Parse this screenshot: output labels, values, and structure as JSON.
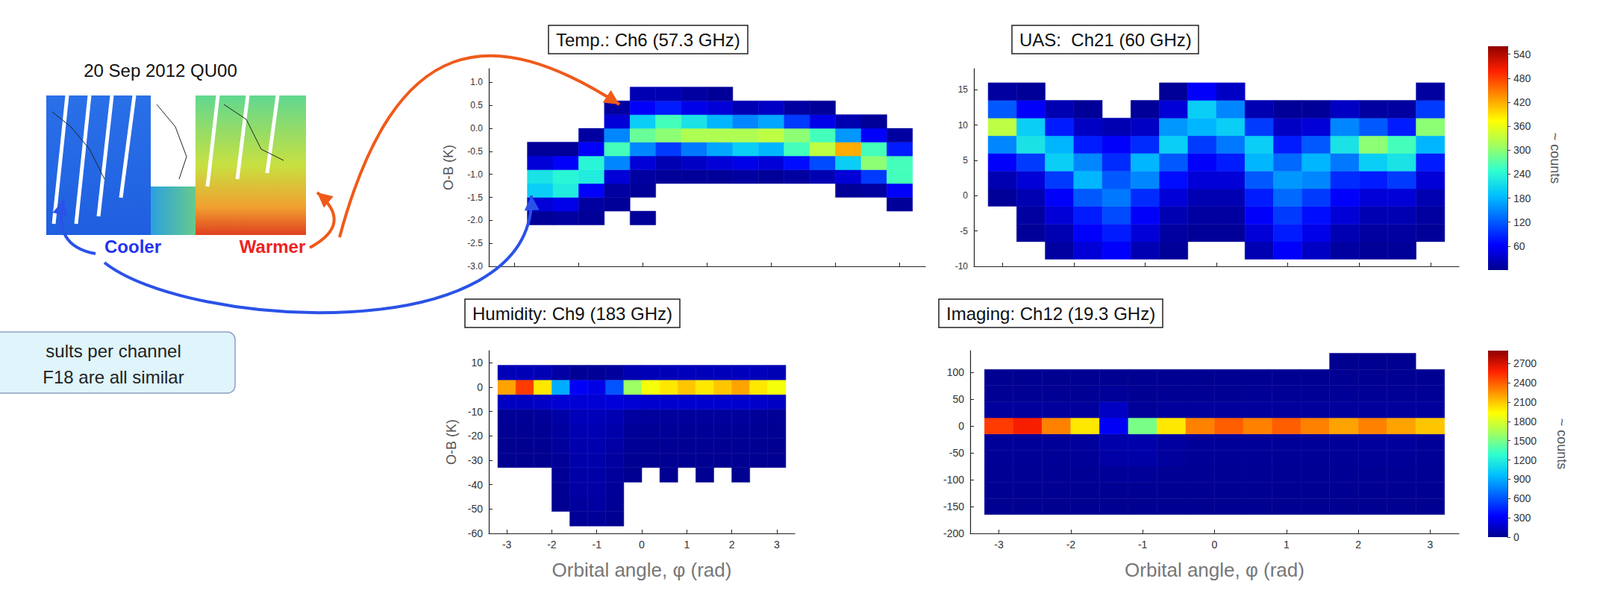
{
  "inset": {
    "title": "20 Sep 2012 QU00",
    "labels": [
      "Cooler",
      "Warmer"
    ]
  },
  "note": {
    "lines": [
      "sults per channel",
      "F18 are all similar"
    ]
  },
  "colorbars": [
    {
      "label": "~ counts",
      "range": [
        0,
        560
      ],
      "ticks": [
        60,
        120,
        180,
        240,
        300,
        360,
        420,
        480,
        540
      ]
    },
    {
      "label": "~ counts",
      "range": [
        0,
        2900
      ],
      "ticks": [
        0,
        300,
        600,
        900,
        1200,
        1500,
        1800,
        2100,
        2400,
        2700
      ]
    }
  ],
  "chart_data": [
    {
      "type": "heatmap",
      "title": "Temp.: Ch6 (57.3 GHz)",
      "ylabel": "O-B (K)",
      "xlim": [
        -3.4,
        3.4
      ],
      "xticks": [
        -3,
        -2,
        -1,
        0,
        1,
        2,
        3
      ],
      "ylim": [
        -3,
        1.3
      ],
      "yticks": [
        {
          "value": -3,
          "label": "-3.0"
        },
        -2.5,
        {
          "value": -2,
          "label": "-2.0"
        },
        -1.5,
        {
          "value": -1,
          "label": "-1.0"
        },
        -0.5,
        {
          "value": 0,
          "label": "0.0"
        },
        0.5,
        {
          "value": 1,
          "label": "1.0"
        }
      ],
      "tick_labels": "y",
      "x_bins": [
        -3.2,
        -2.8,
        -2.4,
        -2,
        -1.6,
        -1.2,
        -0.8,
        -0.4,
        0,
        0.4,
        0.8,
        1.2,
        1.6,
        2,
        2.4,
        2.8,
        3.2
      ],
      "y_bins": [
        -2.1,
        -1.8,
        -1.5,
        -1.2,
        -0.9,
        -0.6,
        -0.3,
        0,
        0.3,
        0.6,
        0.9
      ],
      "counts": [
        [
          0,
          5,
          10,
          5,
          0,
          5,
          0,
          0,
          0,
          0,
          0,
          0,
          0,
          0,
          0,
          0
        ],
        [
          0,
          40,
          50,
          10,
          5,
          0,
          0,
          0,
          0,
          0,
          0,
          0,
          0,
          0,
          0,
          5
        ],
        [
          0,
          200,
          230,
          60,
          10,
          5,
          0,
          0,
          0,
          0,
          0,
          0,
          0,
          5,
          10,
          60
        ],
        [
          0,
          220,
          240,
          230,
          40,
          10,
          5,
          5,
          5,
          10,
          5,
          10,
          20,
          40,
          100,
          260
        ],
        [
          0,
          40,
          60,
          240,
          150,
          40,
          20,
          30,
          40,
          50,
          40,
          70,
          110,
          200,
          300,
          260
        ],
        [
          0,
          5,
          5,
          60,
          260,
          150,
          100,
          140,
          170,
          200,
          180,
          260,
          330,
          420,
          260,
          80
        ],
        [
          0,
          0,
          0,
          10,
          150,
          280,
          300,
          320,
          320,
          320,
          330,
          300,
          260,
          160,
          60,
          10
        ],
        [
          0,
          0,
          0,
          0,
          40,
          200,
          260,
          220,
          180,
          150,
          170,
          100,
          50,
          20,
          5,
          0
        ],
        [
          0,
          0,
          0,
          0,
          10,
          60,
          80,
          50,
          40,
          20,
          30,
          10,
          5,
          0,
          0,
          0
        ],
        [
          0,
          0,
          0,
          0,
          0,
          20,
          20,
          10,
          5,
          0,
          0,
          0,
          0,
          0,
          0,
          0
        ]
      ]
    },
    {
      "type": "heatmap",
      "title": "UAS:  Ch21 (60 GHz)",
      "xlim": [
        -3.4,
        3.4
      ],
      "xticks": [
        -3,
        -2,
        -1,
        0,
        1,
        2,
        3
      ],
      "ylim": [
        -10,
        18
      ],
      "yticks": [
        -10,
        -5,
        0,
        5,
        10,
        15
      ],
      "tick_labels": "y",
      "x_bins": [
        -3.2,
        -2.8,
        -2.4,
        -2,
        -1.6,
        -1.2,
        -0.8,
        -0.4,
        0,
        0.4,
        0.8,
        1.2,
        1.6,
        2,
        2.4,
        2.8,
        3.2
      ],
      "y_bins": [
        -9,
        -6.5,
        -4,
        -1.5,
        1,
        3.5,
        6,
        8.5,
        11,
        13.5,
        16
      ],
      "counts": [
        [
          0,
          0,
          10,
          40,
          60,
          20,
          5,
          0,
          0,
          20,
          60,
          30,
          10,
          5,
          5,
          0
        ],
        [
          0,
          5,
          20,
          60,
          80,
          40,
          10,
          5,
          5,
          40,
          80,
          50,
          20,
          10,
          10,
          5
        ],
        [
          0,
          10,
          40,
          80,
          110,
          60,
          20,
          10,
          10,
          60,
          100,
          70,
          40,
          20,
          20,
          10
        ],
        [
          5,
          20,
          60,
          120,
          140,
          90,
          40,
          20,
          20,
          80,
          130,
          100,
          60,
          40,
          40,
          20
        ],
        [
          20,
          40,
          100,
          180,
          120,
          150,
          70,
          40,
          40,
          120,
          160,
          150,
          90,
          80,
          100,
          40
        ],
        [
          60,
          100,
          200,
          150,
          90,
          180,
          120,
          60,
          80,
          180,
          130,
          180,
          140,
          200,
          220,
          80
        ],
        [
          150,
          220,
          180,
          80,
          60,
          90,
          200,
          100,
          140,
          200,
          80,
          120,
          220,
          300,
          260,
          180
        ],
        [
          330,
          200,
          80,
          30,
          20,
          30,
          160,
          180,
          200,
          100,
          30,
          40,
          150,
          120,
          80,
          300
        ],
        [
          120,
          60,
          20,
          5,
          0,
          5,
          40,
          200,
          150,
          20,
          5,
          5,
          30,
          10,
          10,
          100
        ],
        [
          10,
          5,
          0,
          0,
          0,
          0,
          5,
          60,
          30,
          0,
          0,
          0,
          0,
          0,
          0,
          10
        ]
      ]
    },
    {
      "type": "heatmap",
      "title": "Humidity: Ch9 (183 GHz)",
      "xlabel": "Orbital angle, φ (rad)",
      "ylabel": "O-B (K)",
      "xlim": [
        -3.4,
        3.4
      ],
      "xticks": [
        -3,
        -2,
        -1,
        0,
        1,
        2,
        3
      ],
      "ylim": [
        -60,
        15
      ],
      "yticks": [
        -60,
        -50,
        -40,
        -30,
        -20,
        -10,
        0,
        10
      ],
      "x_bins": [
        -3.2,
        -2.8,
        -2.4,
        -2,
        -1.6,
        -1.2,
        -0.8,
        -0.4,
        0,
        0.4,
        0.8,
        1.2,
        1.6,
        2,
        2.4,
        2.8,
        3.2
      ],
      "y_bins": [
        -57,
        -51,
        -45,
        -39,
        -33,
        -27,
        -21,
        -15,
        -9,
        -3,
        3,
        9
      ],
      "counts": [
        [
          0,
          0,
          0,
          0,
          20,
          30,
          5,
          0,
          0,
          0,
          0,
          0,
          0,
          0,
          0,
          0
        ],
        [
          0,
          0,
          0,
          5,
          40,
          50,
          20,
          0,
          0,
          0,
          0,
          0,
          0,
          0,
          0,
          0
        ],
        [
          0,
          0,
          0,
          10,
          60,
          60,
          30,
          0,
          0,
          0,
          0,
          0,
          0,
          0,
          0,
          0
        ],
        [
          0,
          0,
          0,
          20,
          70,
          70,
          40,
          5,
          0,
          5,
          0,
          5,
          0,
          5,
          0,
          0
        ],
        [
          5,
          5,
          5,
          30,
          80,
          80,
          50,
          10,
          5,
          10,
          5,
          10,
          5,
          10,
          5,
          5
        ],
        [
          5,
          5,
          10,
          40,
          90,
          90,
          60,
          20,
          10,
          15,
          10,
          15,
          10,
          15,
          10,
          5
        ],
        [
          10,
          10,
          15,
          50,
          100,
          100,
          80,
          30,
          20,
          25,
          20,
          25,
          20,
          20,
          15,
          10
        ],
        [
          20,
          20,
          30,
          70,
          120,
          120,
          100,
          50,
          40,
          40,
          40,
          40,
          40,
          40,
          30,
          20
        ],
        [
          150,
          150,
          160,
          200,
          200,
          200,
          220,
          200,
          180,
          180,
          180,
          180,
          180,
          180,
          170,
          150
        ],
        [
          2200,
          2500,
          2000,
          900,
          300,
          250,
          600,
          1600,
          1900,
          2000,
          2100,
          2000,
          2100,
          2200,
          2000,
          1900
        ],
        [
          120,
          120,
          110,
          60,
          20,
          20,
          40,
          100,
          120,
          120,
          130,
          120,
          120,
          130,
          120,
          110
        ]
      ]
    },
    {
      "type": "heatmap",
      "title": "Imaging: Ch12 (19.3 GHz)",
      "xlabel": "Orbital angle, φ (rad)",
      "xlim": [
        -3.4,
        3.4
      ],
      "xticks": [
        -3,
        -2,
        -1,
        0,
        1,
        2,
        3
      ],
      "ylim": [
        -200,
        140
      ],
      "yticks": [
        -200,
        -150,
        -100,
        -50,
        0,
        50,
        100
      ],
      "x_bins": [
        -3.2,
        -2.8,
        -2.4,
        -2,
        -1.6,
        -1.2,
        -0.8,
        -0.4,
        0,
        0.4,
        0.8,
        1.2,
        1.6,
        2,
        2.4,
        2.8,
        3.2
      ],
      "y_bins": [
        -165,
        -135,
        -105,
        -75,
        -45,
        -15,
        15,
        45,
        75,
        105,
        135
      ],
      "counts": [
        [
          5,
          5,
          5,
          5,
          5,
          5,
          5,
          5,
          5,
          5,
          5,
          5,
          5,
          5,
          5,
          5
        ],
        [
          10,
          10,
          10,
          10,
          10,
          10,
          10,
          10,
          10,
          10,
          10,
          10,
          10,
          10,
          10,
          10
        ],
        [
          15,
          15,
          15,
          15,
          30,
          30,
          15,
          15,
          15,
          15,
          15,
          15,
          15,
          15,
          15,
          15
        ],
        [
          20,
          20,
          20,
          30,
          60,
          70,
          40,
          20,
          20,
          20,
          20,
          20,
          20,
          30,
          30,
          20
        ],
        [
          30,
          30,
          30,
          40,
          80,
          80,
          50,
          30,
          30,
          30,
          30,
          30,
          30,
          40,
          40,
          30
        ],
        [
          2500,
          2600,
          2300,
          2000,
          300,
          1500,
          2000,
          2300,
          2400,
          2300,
          2400,
          2300,
          2200,
          2300,
          2200,
          2100
        ],
        [
          40,
          40,
          40,
          40,
          150,
          30,
          40,
          40,
          40,
          40,
          40,
          40,
          40,
          40,
          40,
          40
        ],
        [
          15,
          15,
          15,
          15,
          30,
          10,
          15,
          15,
          15,
          20,
          20,
          20,
          20,
          20,
          20,
          20
        ],
        [
          5,
          5,
          5,
          5,
          5,
          5,
          5,
          5,
          5,
          10,
          10,
          10,
          10,
          10,
          10,
          10
        ],
        [
          0,
          0,
          0,
          0,
          0,
          0,
          0,
          0,
          0,
          0,
          0,
          0,
          5,
          5,
          5,
          0
        ]
      ]
    }
  ]
}
